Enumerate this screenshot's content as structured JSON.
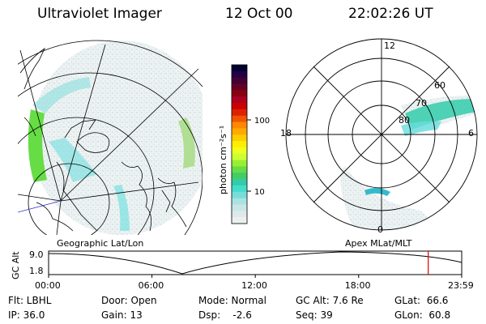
{
  "header": {
    "title": "Ultraviolet Imager",
    "date": "12 Oct 00",
    "time": "22:02:26 UT"
  },
  "colorbar": {
    "unit_label": "photon cm⁻²s⁻¹",
    "ticks": [
      "100",
      "10"
    ],
    "colors": [
      "#000033",
      "#220044",
      "#440033",
      "#660022",
      "#880011",
      "#aa0022",
      "#cc0000",
      "#dd2200",
      "#ee5500",
      "#ff8800",
      "#ffaa00",
      "#ffcc00",
      "#ffee00",
      "#eeff22",
      "#ccff33",
      "#99ee33",
      "#66dd44",
      "#44cc66",
      "#33ccaa",
      "#44ddcc",
      "#77ddd8",
      "#aae2e2",
      "#c8e6e6",
      "#dde9ea",
      "#eceff0"
    ]
  },
  "polar_plot": {
    "labels": {
      "top": "12",
      "left": "18",
      "right": "6",
      "bottom": "0"
    },
    "lat_labels": [
      "60",
      "70",
      "80"
    ]
  },
  "map_labels": {
    "left": "Geographic Lat/Lon",
    "right": "Apex MLat/MLT"
  },
  "timeline": {
    "axis_label": "GC Alt",
    "y_ticks": [
      "9.0",
      "1.8"
    ],
    "x_ticks": [
      "00:00",
      "06:00",
      "12:00",
      "18:00",
      "23:59"
    ],
    "current_marker_hours": 22.04,
    "marker_color": "#dd0000"
  },
  "info": {
    "flt": "Flt: LBHL",
    "ip": "IP: 36.0",
    "door": "Door: Open",
    "gain": "Gain: 13",
    "mode": "Mode: Normal",
    "dsp": "Dsp:    -2.6",
    "gcalt": "GC Alt: 7.6 Re",
    "seq": "Seq: 39",
    "glat": "GLat:  66.6",
    "glon": "GLon:  60.8"
  }
}
